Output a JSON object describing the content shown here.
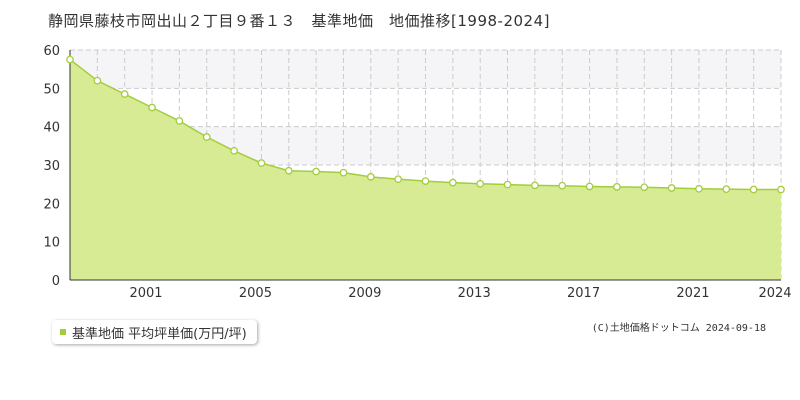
{
  "chart_data": {
    "type": "area",
    "title": "静岡県藤枝市岡出山２丁目９番１３　基準地価　地価推移[1998-2024]",
    "xlabel": "",
    "ylabel": "",
    "x": [
      1998,
      1999,
      2000,
      2001,
      2002,
      2003,
      2004,
      2005,
      2006,
      2007,
      2008,
      2009,
      2010,
      2011,
      2012,
      2013,
      2014,
      2015,
      2016,
      2017,
      2018,
      2019,
      2020,
      2021,
      2022,
      2023,
      2024
    ],
    "series": [
      {
        "name": "基準地価 平均坪単価(万円/坪)",
        "values": [
          57.5,
          52.0,
          48.5,
          45.0,
          41.5,
          37.3,
          33.7,
          30.5,
          28.5,
          28.3,
          28.0,
          26.9,
          26.3,
          25.8,
          25.4,
          25.1,
          24.9,
          24.7,
          24.6,
          24.4,
          24.3,
          24.2,
          24.0,
          23.8,
          23.7,
          23.6,
          23.6
        ]
      }
    ],
    "x_tick_labels": [
      "2001",
      "2005",
      "2009",
      "2013",
      "2017",
      "2021",
      "2024"
    ],
    "x_tick_years": [
      2001,
      2005,
      2009,
      2013,
      2017,
      2021,
      2024
    ],
    "y_ticks": [
      0,
      10,
      20,
      30,
      40,
      50,
      60
    ],
    "xlim": [
      1998,
      2024
    ],
    "ylim": [
      0,
      60
    ],
    "grid": true,
    "legend_position": "bottom-left",
    "colors": {
      "fill": "#d6eb94",
      "line": "#a3cd3c",
      "band": "#f5f5f8",
      "grid": "#cccccc"
    }
  },
  "legend": {
    "label": "基準地価 平均坪単価(万円/坪)"
  },
  "credit": "(C)土地価格ドットコム 2024-09-18"
}
